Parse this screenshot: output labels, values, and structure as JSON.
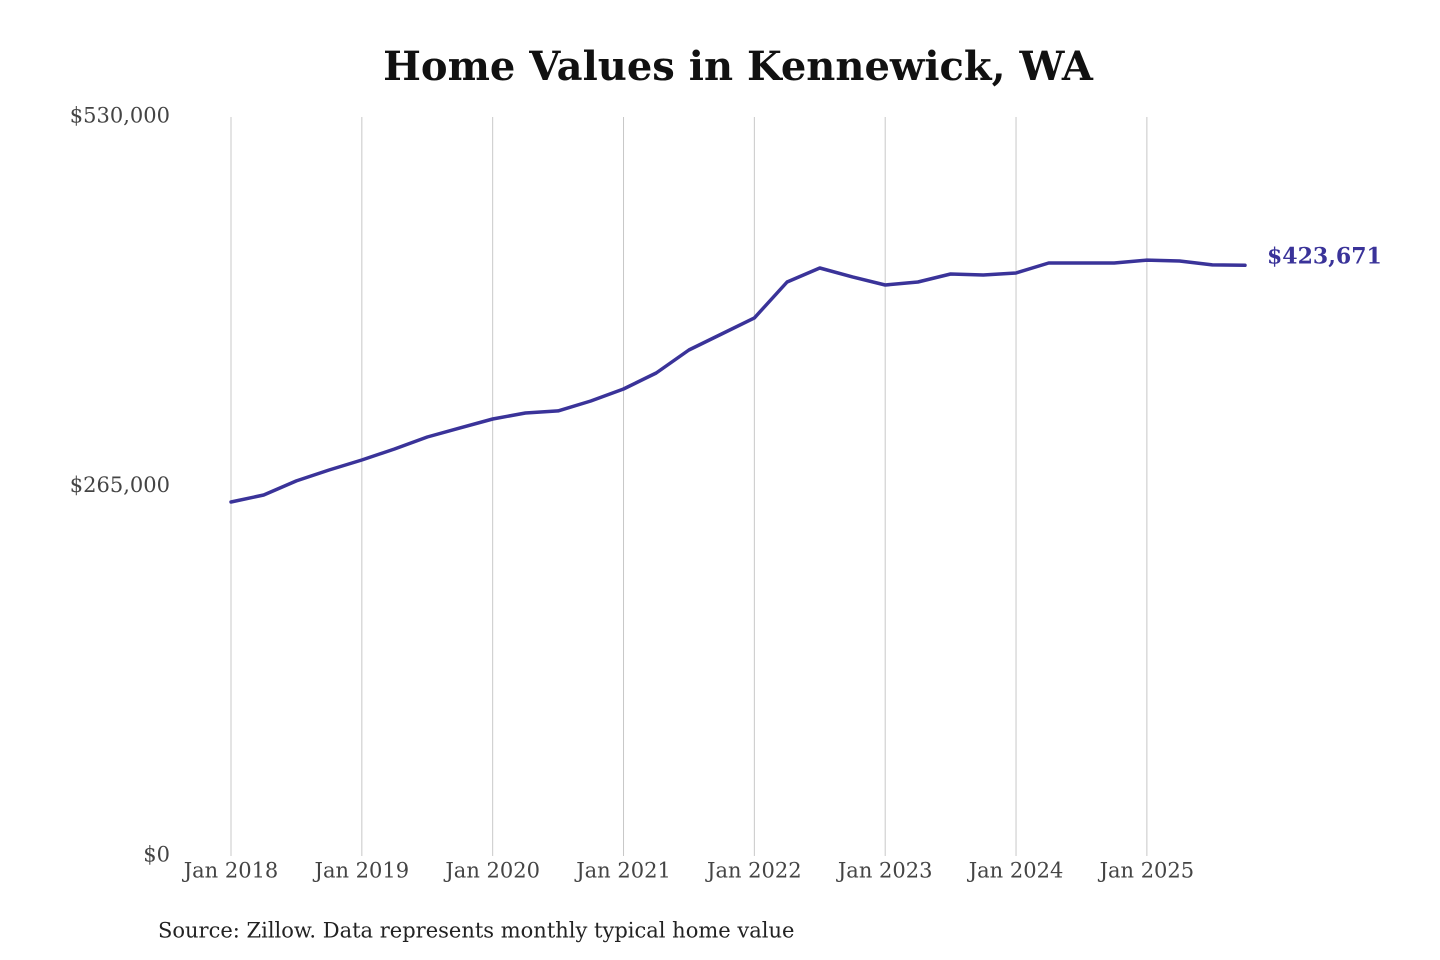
{
  "chart_data": {
    "type": "line",
    "title": "Home Values in Kennewick, WA",
    "source": "Source: Zillow. Data represents monthly typical home value",
    "color": "#3a3399",
    "x": [
      "2018-01",
      "2018-04",
      "2018-07",
      "2018-10",
      "2019-01",
      "2019-04",
      "2019-07",
      "2019-10",
      "2020-01",
      "2020-04",
      "2020-07",
      "2020-10",
      "2021-01",
      "2021-04",
      "2021-07",
      "2021-10",
      "2022-01",
      "2022-04",
      "2022-07",
      "2022-10",
      "2023-01",
      "2023-04",
      "2023-07",
      "2023-10",
      "2024-01",
      "2024-04",
      "2024-07",
      "2024-10",
      "2025-01",
      "2025-04",
      "2025-07",
      "2025-10"
    ],
    "values": [
      253900,
      258900,
      269000,
      276800,
      284000,
      291900,
      300500,
      307000,
      313400,
      317700,
      319200,
      326300,
      334900,
      346400,
      362900,
      374400,
      385900,
      411700,
      421700,
      415300,
      409500,
      411700,
      417400,
      416700,
      418100,
      425300,
      425300,
      425300,
      427400,
      426700,
      423900,
      423671
    ],
    "value_labels": [
      null,
      null,
      null,
      null,
      null,
      null,
      null,
      null,
      null,
      null,
      null,
      null,
      null,
      null,
      null,
      null,
      null,
      null,
      null,
      null,
      null,
      null,
      null,
      null,
      null,
      null,
      null,
      null,
      null,
      null,
      null,
      "$423,671"
    ],
    "xlim": [
      "2018-01",
      "2025-10"
    ],
    "xticks": [
      {
        "value": "2018-01",
        "label": "Jan 2018"
      },
      {
        "value": "2019-01",
        "label": "Jan 2019"
      },
      {
        "value": "2020-01",
        "label": "Jan 2020"
      },
      {
        "value": "2021-01",
        "label": "Jan 2021"
      },
      {
        "value": "2022-01",
        "label": "Jan 2022"
      },
      {
        "value": "2023-01",
        "label": "Jan 2023"
      },
      {
        "value": "2024-01",
        "label": "Jan 2024"
      },
      {
        "value": "2025-01",
        "label": "Jan 2025"
      }
    ],
    "ylim": [
      0,
      530000
    ],
    "yticks": [
      {
        "value": 0,
        "label": "$0"
      },
      {
        "value": 265000,
        "label": "$265,000"
      },
      {
        "value": 530000,
        "label": "$530,000"
      }
    ],
    "grid": "x"
  }
}
